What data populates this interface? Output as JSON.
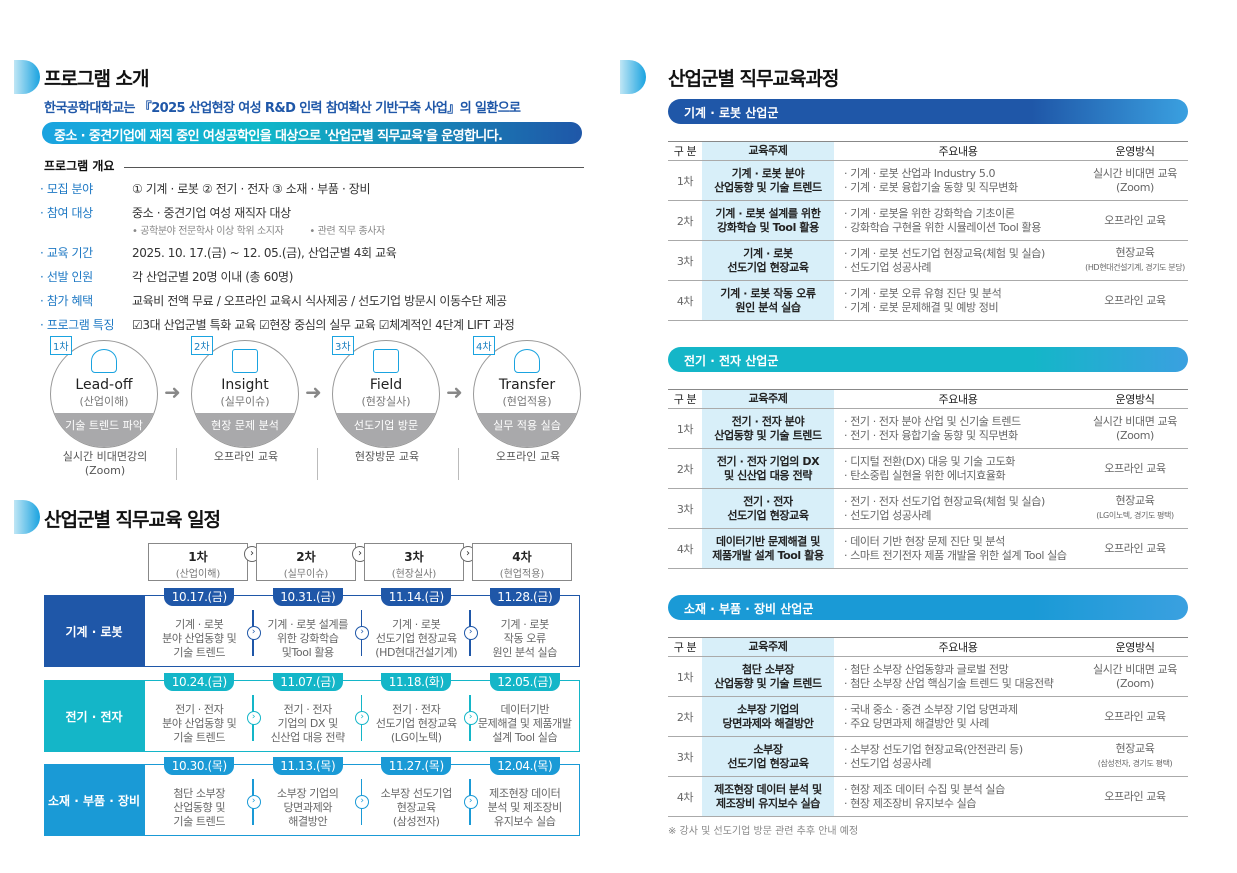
{
  "left": {
    "title": "프로그램 소개",
    "intro_line1": "한국공학대학교는 『2025 산업현장 여성 R&D 인력 참여확산 기반구축 사업』의 일환으로",
    "intro_line2": "중소 · 중견기업에 재직 중인 여성공학인을 대상으로 '산업군별 직무교육'을 운영합니다.",
    "overview_title": "프로그램 개요",
    "overview": [
      {
        "label": "· 모집 분야",
        "value": "① 기계 · 로봇   ② 전기 · 전자   ③ 소재 · 부품 · 장비"
      },
      {
        "label": "· 참여 대상",
        "value": "중소 · 중견기업 여성 재직자 대상",
        "sub1": "• 공학분야 전문학사 이상 학위 소지자",
        "sub2": "• 관련 직무 종사자"
      },
      {
        "label": "· 교육 기간",
        "value": "2025. 10. 17.(금) ~ 12. 05.(금), 산업군별 4회 교육"
      },
      {
        "label": "· 선발 인원",
        "value": "각 산업군별 20명 이내 (총 60명)"
      },
      {
        "label": "· 참가 혜택",
        "value": "교육비 전액 무료 / 오프라인 교육시 식사제공 / 선도기업 방문시 이동수단 제공"
      },
      {
        "label": "· 프로그램 특징",
        "value": "☑3대 산업군별 특화 교육  ☑현장 중심의 실무 교육  ☑체계적인 4단계 LIFT 과정"
      }
    ],
    "steps": [
      {
        "badge": "1차",
        "en": "Lead-off",
        "ko": "(산업이해)",
        "band": "기술 트렌드 파악",
        "mode": "실시간 비대면강의\n(Zoom)",
        "icon": "head-gear-icon"
      },
      {
        "badge": "2차",
        "en": "Insight",
        "ko": "(실무이슈)",
        "band": "현장 문제 분석",
        "mode": "오프라인 교육",
        "icon": "presentation-icon"
      },
      {
        "badge": "3차",
        "en": "Field",
        "ko": "(현장실사)",
        "band": "선도기업 방문",
        "mode": "현장방문 교육",
        "icon": "blueprint-icon"
      },
      {
        "badge": "4차",
        "en": "Transfer",
        "ko": "(현업적용)",
        "band": "실무 적용 실습",
        "mode": "오프라인 교육",
        "icon": "helmet-gear-icon"
      }
    ],
    "schedule_title": "산업군별 직무교육 일정",
    "schedule_headers": [
      {
        "n": "1차",
        "s": "(산업이해)"
      },
      {
        "n": "2차",
        "s": "(실무이슈)"
      },
      {
        "n": "3차",
        "s": "(현장실사)"
      },
      {
        "n": "4차",
        "s": "(현업적용)"
      }
    ],
    "schedule": [
      {
        "label": "기계 · 로봇",
        "color": "#1f57a8",
        "items": [
          {
            "date": "10.17.(금)",
            "text": "기계 · 로봇\n분야 산업동향 및\n기술 트렌드"
          },
          {
            "date": "10.31.(금)",
            "text": "기계 · 로봇 설계를\n위한 강화학습\n및Tool 활용"
          },
          {
            "date": "11.14.(금)",
            "text": "기계 · 로봇\n선도기업 현장교육\n(HD현대건설기계)"
          },
          {
            "date": "11.28.(금)",
            "text": "기계 · 로봇\n작동 오류\n원인 분석 실습"
          }
        ]
      },
      {
        "label": "전기 · 전자",
        "color": "#14b6c8",
        "items": [
          {
            "date": "10.24.(금)",
            "text": "전기 · 전자\n분야 산업동향 및\n기술 트렌드"
          },
          {
            "date": "11.07.(금)",
            "text": "전기 · 전자\n기업의 DX 및\n신산업 대응 전략"
          },
          {
            "date": "11.18.(화)",
            "text": "전기 · 전자\n선도기업 현장교육\n(LG이노텍)"
          },
          {
            "date": "12.05.(금)",
            "text": "데이터기반\n문제해결 및 제품개발\n설계 Tool 실습"
          }
        ]
      },
      {
        "label": "소재 · 부품 · 장비",
        "color": "#1a9ad6",
        "items": [
          {
            "date": "10.30.(목)",
            "text": "첨단 소부장\n산업동향 및\n기술 트렌드"
          },
          {
            "date": "11.13.(목)",
            "text": "소부장 기업의\n당면과제와\n해결방안"
          },
          {
            "date": "11.27.(목)",
            "text": "소부장 선도기업\n현장교육\n(삼성전자)"
          },
          {
            "date": "12.04.(목)",
            "text": "제조현장 데이터\n분석 및 제조장비\n유지보수 실습"
          }
        ]
      }
    ]
  },
  "right": {
    "title": "산업군별 직무교육과정",
    "headers": [
      "구 분",
      "교육주제",
      "주요내용",
      "운영방식"
    ],
    "groups": [
      {
        "name": "기계 · 로봇 산업군",
        "color": "#1f57a8",
        "rows": [
          {
            "n": "1차",
            "topic": "기계 · 로봇 분야\n산업동향 및 기술 트렌드",
            "content": "· 기계 · 로봇 산업과 Industry 5.0\n· 기계 · 로봇 융합기술 동향 및 직무변화",
            "mode": "실시간 비대면 교육\n(Zoom)"
          },
          {
            "n": "2차",
            "topic": "기계 · 로봇 설계를 위한\n강화학습 및 Tool 활용",
            "content": "· 기계 · 로봇을 위한 강화학습 기초이론\n· 강화학습 구현을 위한 시뮬레이션 Tool 활용",
            "mode": "오프라인 교육"
          },
          {
            "n": "3차",
            "topic": "기계 · 로봇\n선도기업 현장교육",
            "content": "· 기계 · 로봇 선도기업 현장교육(체험 및 실습)\n· 선도기업 성공사례",
            "mode": "현장교육",
            "mode_sub": "(HD현대건설기계, 경기도 분당)"
          },
          {
            "n": "4차",
            "topic": "기계 · 로봇 작동 오류\n원인 분석 실습",
            "content": "· 기계 · 로봇 오류 유형 진단 및 분석\n· 기계 · 로봇 문제해결 및 예방 정비",
            "mode": "오프라인 교육"
          }
        ]
      },
      {
        "name": "전기 · 전자 산업군",
        "color": "#14b6c8",
        "rows": [
          {
            "n": "1차",
            "topic": "전기 · 전자 분야\n산업동향 및 기술 트렌드",
            "content": "· 전기 · 전자 분야 산업 및 신기술 트렌드\n· 전기 · 전자 융합기술 동향 및 직무변화",
            "mode": "실시간 비대면 교육\n(Zoom)"
          },
          {
            "n": "2차",
            "topic": "전기 · 전자 기업의 DX\n및 신산업 대응 전략",
            "content": "· 디지털 전환(DX) 대응 및 기술 고도화\n· 탄소중립 실현을 위한 에너지효율화",
            "mode": "오프라인 교육"
          },
          {
            "n": "3차",
            "topic": "전기 · 전자\n선도기업 현장교육",
            "content": "· 전기 · 전자 선도기업 현장교육(체험 및 실습)\n· 선도기업 성공사례",
            "mode": "현장교육",
            "mode_sub": "(LG이노텍, 경기도 평택)"
          },
          {
            "n": "4차",
            "topic": "데이터기반 문제해결 및\n제품개발 설계 Tool 활용",
            "content": "· 데이터 기반 현장 문제 진단 및 분석\n· 스마트 전기전자 제품 개발을 위한 설계 Tool 실습",
            "mode": "오프라인 교육"
          }
        ]
      },
      {
        "name": "소재 · 부품 · 장비 산업군",
        "color": "#1a9ad6",
        "rows": [
          {
            "n": "1차",
            "topic": "첨단 소부장\n산업동향 및 기술 트렌드",
            "content": "· 첨단 소부장 산업동향과 글로벌 전망\n· 첨단 소부장 산업 핵심기술 트렌드 및 대응전략",
            "mode": "실시간 비대면 교육\n(Zoom)"
          },
          {
            "n": "2차",
            "topic": "소부장 기업의\n당면과제와 해결방안",
            "content": "· 국내 중소 · 중견 소부장 기업 당면과제\n· 주요 당면과제 해결방안 및 사례",
            "mode": "오프라인 교육"
          },
          {
            "n": "3차",
            "topic": "소부장\n선도기업 현장교육",
            "content": "· 소부장 선도기업 현장교육(안전관리 등)\n· 선도기업 성공사례",
            "mode": "현장교육",
            "mode_sub": "(삼성전자, 경기도 평택)"
          },
          {
            "n": "4차",
            "topic": "제조현장 데이터 분석 및\n제조장비 유지보수 실습",
            "content": "· 현장 제조 데이터 수집 및 분석 실습\n· 현장 제조장비 유지보수 실습",
            "mode": "오프라인 교육"
          }
        ]
      }
    ],
    "note": "※ 강사 및 선도기업 방문 관련 추후 안내 예정"
  }
}
